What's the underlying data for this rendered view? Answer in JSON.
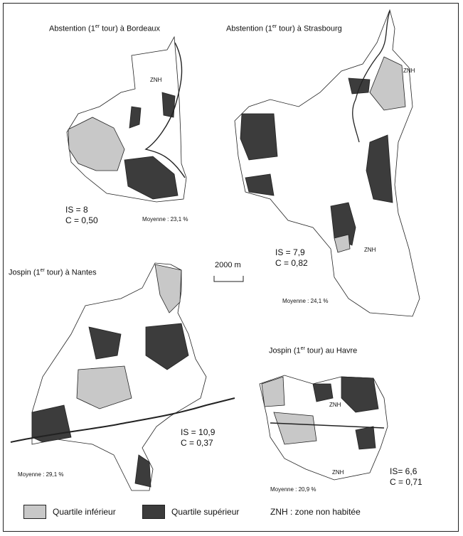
{
  "maps": [
    {
      "title_main": "Abstention (1",
      "title_sup": "er",
      "title_rest": " tour) à Bordeaux",
      "is": "IS = 8",
      "c": "C = 0,50",
      "mean": "Moyenne : 23,1 %",
      "znh": [
        "ZNH"
      ]
    },
    {
      "title_main": "Abstention (1",
      "title_sup": "er",
      "title_rest": " tour) à Strasbourg",
      "is": "IS = 7,9",
      "c": "C = 0,82",
      "mean": "Moyenne : 24,1 %",
      "znh": [
        "ZNH",
        "ZNH"
      ]
    },
    {
      "title_main": "Jospin (1",
      "title_sup": "er",
      "title_rest": " tour) à Nantes",
      "is": "IS = 10,9",
      "c": "C = 0,37",
      "mean": "Moyenne : 29,1 %",
      "znh": []
    },
    {
      "title_main": "Jospin (1",
      "title_sup": "er",
      "title_rest": " tour) au Havre",
      "is": "IS= 6,6",
      "c": "C = 0,71",
      "mean": "Moyenne : 20,9 %",
      "znh": [
        "ZNH",
        "ZNH"
      ]
    }
  ],
  "scale": "2000 m",
  "legend": {
    "lower": "Quartile inférieur",
    "upper": "Quartile supérieur",
    "znh": "ZNH : zone non habitée"
  },
  "colors": {
    "lower": "#c8c8c8",
    "upper": "#3c3c3c",
    "none": "#ffffff",
    "line": "#222222"
  }
}
